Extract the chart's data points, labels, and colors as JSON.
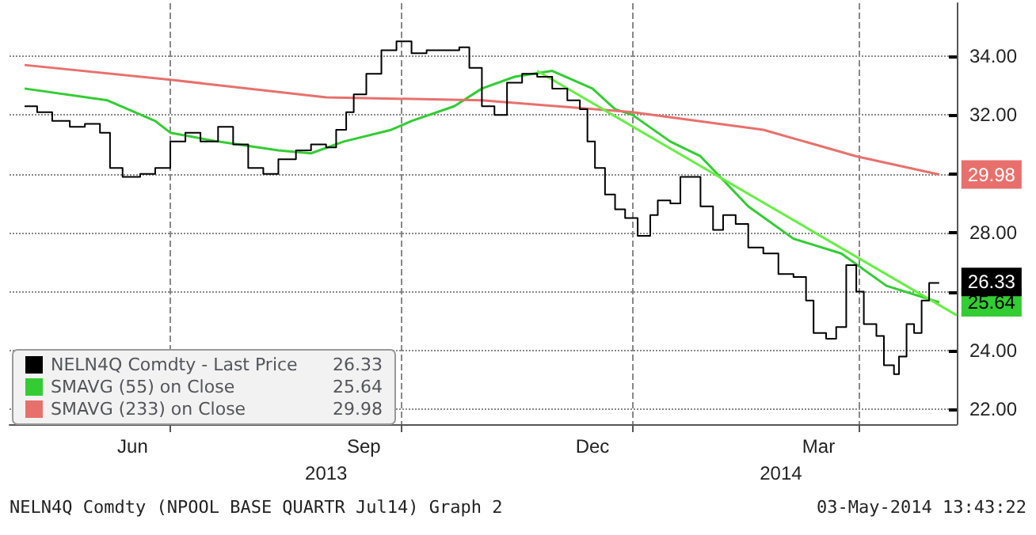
{
  "chart_data": {
    "type": "line",
    "x": [
      "2013-05-04",
      "2013-05-09",
      "2013-05-15",
      "2013-05-22",
      "2013-05-28",
      "2013-06-03",
      "2013-06-07",
      "2013-06-12",
      "2013-06-19",
      "2013-06-25",
      "2013-07-01",
      "2013-07-07",
      "2013-07-13",
      "2013-07-20",
      "2013-07-26",
      "2013-08-01",
      "2013-08-07",
      "2013-08-13",
      "2013-08-20",
      "2013-08-26",
      "2013-09-01",
      "2013-09-05",
      "2013-09-09",
      "2013-09-12",
      "2013-09-17",
      "2013-09-23",
      "2013-09-29",
      "2013-10-05",
      "2013-10-11",
      "2013-10-18",
      "2013-10-24",
      "2013-10-28",
      "2013-11-02",
      "2013-11-07",
      "2013-11-12",
      "2013-11-18",
      "2013-11-24",
      "2013-11-30",
      "2013-12-06",
      "2013-12-11",
      "2013-12-14",
      "2013-12-17",
      "2013-12-21",
      "2013-12-25",
      "2013-12-29",
      "2014-01-03",
      "2014-01-08",
      "2014-01-11",
      "2014-01-16",
      "2014-01-20",
      "2014-01-25",
      "2014-01-28",
      "2014-02-02",
      "2014-02-06",
      "2014-02-11",
      "2014-02-16",
      "2014-02-22",
      "2014-02-28",
      "2014-03-06",
      "2014-03-11",
      "2014-03-14",
      "2014-03-19",
      "2014-03-23",
      "2014-03-27",
      "2014-03-31",
      "2014-04-03",
      "2014-04-08",
      "2014-04-11",
      "2014-04-15",
      "2014-04-17",
      "2014-04-20",
      "2014-04-23",
      "2014-04-26",
      "2014-04-29",
      "2014-05-03"
    ],
    "series": [
      {
        "name": "NELN4Q Comdty - Last Price",
        "type": "step",
        "color": "#000000",
        "values": [
          32.3,
          32.1,
          31.8,
          31.6,
          31.7,
          31.4,
          30.2,
          29.9,
          30.0,
          30.2,
          31.1,
          31.4,
          31.1,
          31.6,
          31.0,
          30.2,
          30.0,
          30.5,
          30.8,
          31.0,
          30.9,
          31.5,
          32.1,
          32.7,
          33.4,
          34.2,
          34.5,
          34.1,
          34.2,
          34.2,
          34.3,
          33.6,
          32.3,
          32.0,
          33.1,
          33.4,
          33.3,
          32.9,
          32.5,
          32.2,
          31.1,
          30.2,
          29.3,
          28.8,
          28.5,
          27.9,
          28.6,
          29.1,
          29.0,
          29.9,
          29.9,
          28.9,
          28.1,
          28.6,
          28.3,
          27.5,
          27.3,
          26.6,
          26.5,
          25.7,
          24.6,
          24.4,
          24.8,
          26.9,
          26.0,
          24.9,
          24.5,
          23.5,
          23.2,
          23.8,
          24.9,
          24.6,
          25.7,
          26.3,
          26.33
        ],
        "value_labels": [
          null,
          null,
          null,
          null,
          null,
          null,
          null,
          null,
          null,
          null,
          null,
          null,
          null,
          null,
          null,
          null,
          null,
          null,
          null,
          null,
          null,
          null,
          null,
          null,
          null,
          null,
          null,
          null,
          null,
          null,
          null,
          null,
          null,
          null,
          null,
          null,
          null,
          null,
          null,
          null,
          null,
          null,
          null,
          null,
          null,
          null,
          null,
          null,
          null,
          null,
          null,
          null,
          null,
          null,
          null,
          null,
          null,
          null,
          null,
          null,
          null,
          null,
          null,
          null,
          null,
          null,
          null,
          null,
          null,
          null,
          null,
          null,
          null,
          null,
          "26.33"
        ]
      },
      {
        "name": "SMAVG (55) on Close",
        "color": "#33cc33",
        "value_labels": [
          null,
          null,
          null,
          null,
          null,
          null,
          null,
          null,
          null,
          null,
          null,
          null,
          null,
          null,
          null,
          null,
          null,
          null,
          null,
          null,
          null,
          null,
          null,
          "25.64"
        ],
        "x": [
          "2013-05-04",
          "2013-06-06",
          "2013-06-25",
          "2013-07-01",
          "2013-07-20",
          "2013-08-13",
          "2013-08-26",
          "2013-09-08",
          "2013-09-27",
          "2013-10-05",
          "2013-10-22",
          "2013-11-02",
          "2013-11-15",
          "2013-11-30",
          "2013-12-16",
          "2013-12-25",
          "2014-01-01",
          "2014-01-16",
          "2014-01-28",
          "2014-02-16",
          "2014-03-06",
          "2014-03-25",
          "2014-04-12",
          "2014-05-03"
        ],
        "values": [
          32.9,
          32.5,
          31.8,
          31.4,
          31.1,
          30.8,
          30.7,
          31.1,
          31.5,
          31.8,
          32.3,
          32.9,
          33.3,
          33.5,
          32.9,
          32.2,
          32.0,
          31.1,
          30.6,
          28.9,
          27.8,
          27.3,
          26.2,
          25.64
        ]
      },
      {
        "name": "SMAVG (233) on Close",
        "color": "#e8706c",
        "value_labels": [
          null,
          null,
          null,
          null,
          null,
          null,
          null,
          "29.98"
        ],
        "x": [
          "2013-05-04",
          "2013-07-01",
          "2013-09-01",
          "2013-11-02",
          "2014-01-01",
          "2014-02-22",
          "2014-03-31",
          "2014-05-03"
        ],
        "values": [
          33.7,
          33.2,
          32.6,
          32.5,
          32.1,
          31.5,
          30.6,
          29.98
        ]
      },
      {
        "color": "#66ee44",
        "x": [
          "2013-11-24",
          "2014-05-10"
        ],
        "values": [
          33.5,
          25.2
        ]
      }
    ],
    "xlim": [
      "2013-04-28",
      "2014-05-10"
    ],
    "xticks": [
      {
        "value": "2013-07-01",
        "label": null
      },
      {
        "value": "2013-10-01",
        "label": null
      },
      {
        "value": "2014-01-01",
        "label": null
      },
      {
        "value": "2014-04-01",
        "label": null
      },
      {
        "value": "2013-06-16",
        "label": "Jun"
      },
      {
        "value": "2013-09-16",
        "label": "Sep"
      },
      {
        "value": "2013-12-16",
        "label": "Dec"
      },
      {
        "value": "2014-03-16",
        "label": "Mar"
      }
    ],
    "x2lim": [
      "2013-04-28",
      "2014-05-10"
    ],
    "x2ticks": [
      {
        "value": "2013-09-01",
        "label": "2013"
      },
      {
        "value": "2014-03-01",
        "label": "2014"
      }
    ],
    "ylim": [
      21.5,
      35.8
    ],
    "yticks": [
      {
        "value": 22,
        "label": "22.00"
      },
      {
        "value": 24,
        "label": "24.00"
      },
      {
        "value": 26,
        "label": null
      },
      {
        "value": 28,
        "label": "28.00"
      },
      {
        "value": 30,
        "label": null
      },
      {
        "value": 32,
        "label": "32.00"
      },
      {
        "value": 34,
        "label": "34.00"
      }
    ],
    "grid": true,
    "legend": "bottom left",
    "marker": "none",
    "annotations": [
      "NELN4Q Comdty (NPOOL BASE QUARTR Jul14) Graph 2",
      "03-May-2014 13:43:22"
    ]
  }
}
